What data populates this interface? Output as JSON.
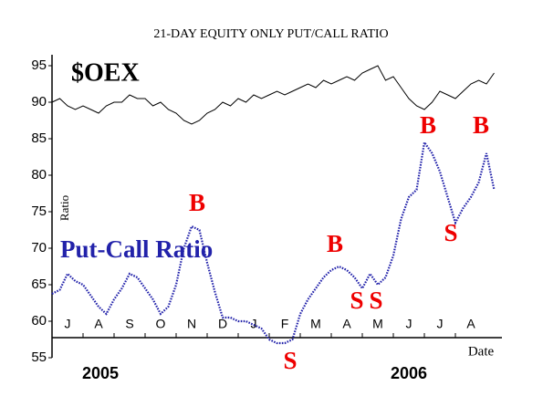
{
  "chart_data": {
    "type": "line",
    "title": "21-DAY EQUITY ONLY PUT/CALL RATIO",
    "y_label": "Ratio",
    "x_label": "Date",
    "year_labels": [
      "2005",
      "2006"
    ],
    "x": [
      0,
      0.25,
      0.5,
      0.75,
      1,
      1.25,
      1.5,
      1.75,
      2,
      2.25,
      2.5,
      2.75,
      3,
      3.25,
      3.5,
      3.75,
      4,
      4.25,
      4.5,
      4.75,
      5,
      5.25,
      5.5,
      5.75,
      6,
      6.25,
      6.5,
      6.75,
      7,
      7.25,
      7.5,
      7.75,
      8,
      8.25,
      8.5,
      8.75,
      9,
      9.25,
      9.5,
      9.75,
      10,
      10.25,
      10.5,
      10.75,
      11,
      11.25,
      11.5,
      11.75,
      12,
      12.25,
      12.5,
      12.75,
      13,
      13.25,
      13.5,
      13.75,
      14,
      14.25
    ],
    "xlim": [
      0,
      14.5
    ],
    "xticks": [
      {
        "value": 0.5,
        "label": "J"
      },
      {
        "value": 1.5,
        "label": "A"
      },
      {
        "value": 2.5,
        "label": "S"
      },
      {
        "value": 3.5,
        "label": "O"
      },
      {
        "value": 4.5,
        "label": "N"
      },
      {
        "value": 5.5,
        "label": "D"
      },
      {
        "value": 6.5,
        "label": "J"
      },
      {
        "value": 7.5,
        "label": "F"
      },
      {
        "value": 8.5,
        "label": "M"
      },
      {
        "value": 9.5,
        "label": "A"
      },
      {
        "value": 10.5,
        "label": "M"
      },
      {
        "value": 11.5,
        "label": "J"
      },
      {
        "value": 12.5,
        "label": "J"
      },
      {
        "value": 13.5,
        "label": "A"
      }
    ],
    "ylim": [
      55,
      96.5
    ],
    "yticks": [
      55,
      60,
      65,
      70,
      75,
      80,
      85,
      90,
      95
    ],
    "series": [
      {
        "name": "$OEX",
        "color": "#000000",
        "values": [
          90,
          90.5,
          89.5,
          89,
          89.5,
          89,
          88.5,
          89.5,
          90,
          90,
          91,
          90.5,
          90.5,
          89.5,
          90,
          89,
          88.5,
          87.5,
          87,
          87.5,
          88.5,
          89,
          90,
          89.5,
          90.5,
          90,
          91,
          90.5,
          91,
          91.5,
          91,
          91.5,
          92,
          92.5,
          92,
          93,
          92.5,
          93,
          93.5,
          93,
          94,
          94.5,
          95,
          93,
          93.5,
          92,
          90.5,
          89.5,
          89,
          90,
          91.5,
          91,
          90.5,
          91.5,
          92.5,
          93,
          92.5,
          94
        ]
      },
      {
        "name": "Put-Call Ratio",
        "color": "#2222aa",
        "values": [
          63.75,
          64.3,
          66.5,
          65.5,
          65,
          63.5,
          62,
          61,
          63,
          64.5,
          66.5,
          66,
          64.5,
          63,
          61,
          62,
          65,
          70,
          73,
          72.5,
          68,
          64,
          60.5,
          60.5,
          60,
          60,
          59.5,
          59,
          57.5,
          57,
          57,
          57.5,
          61,
          63,
          64.5,
          66,
          67,
          67.5,
          67,
          66,
          64.5,
          66.5,
          65,
          66,
          69,
          74,
          77,
          78,
          84.5,
          83,
          80.5,
          77,
          73.5,
          75.5,
          77,
          79,
          83,
          78
        ]
      }
    ],
    "annotations": [
      "B",
      "B",
      "S",
      "S",
      "B",
      "S",
      "B",
      "S"
    ]
  }
}
